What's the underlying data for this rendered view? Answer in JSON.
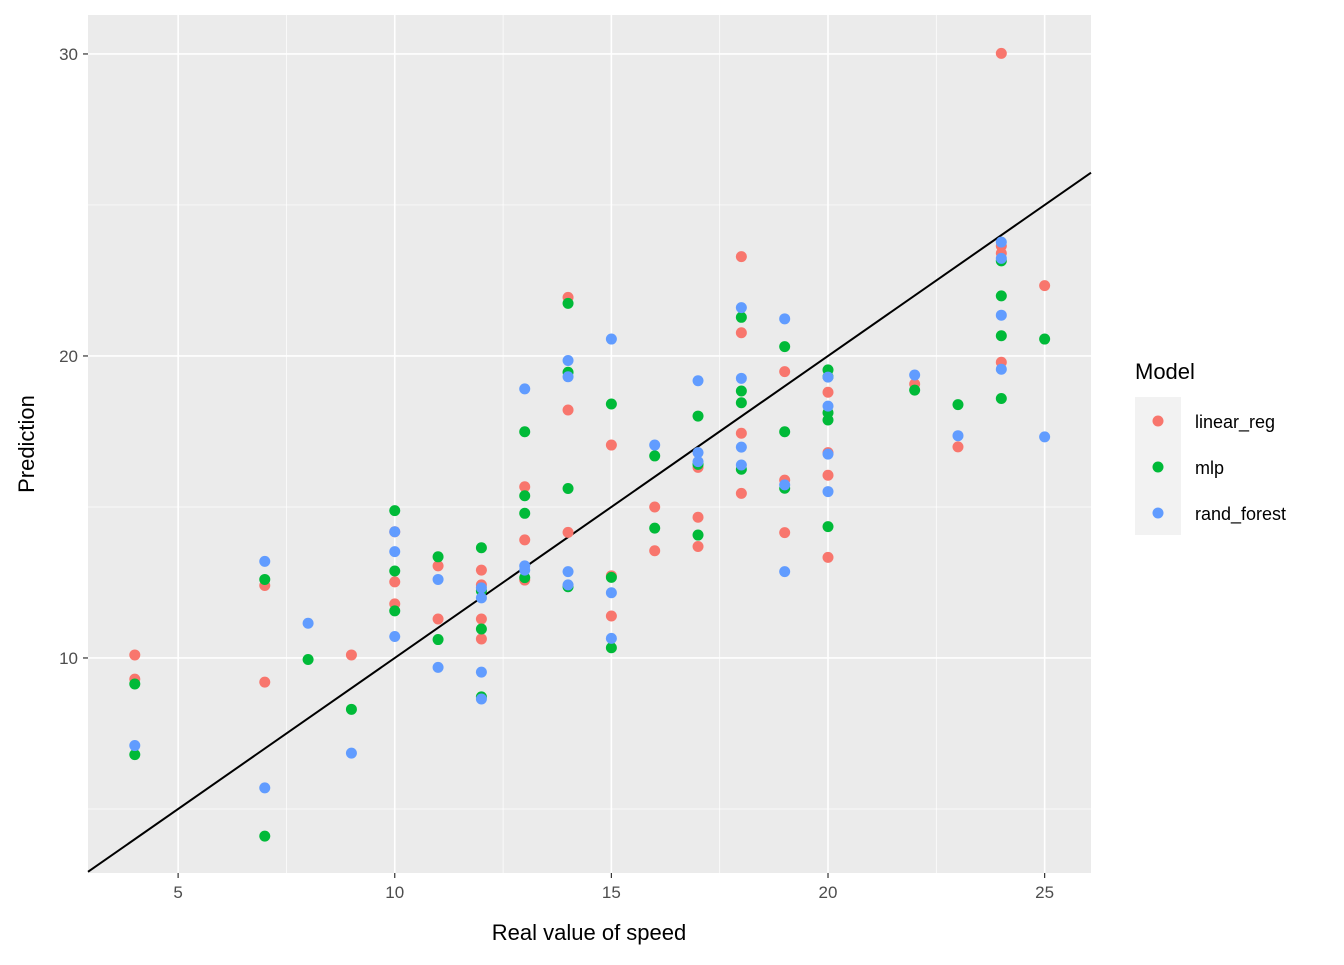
{
  "chart_data": {
    "type": "scatter",
    "title": "",
    "xlabel": "Real value of speed",
    "ylabel": "Prediction",
    "xlim": [
      2.92,
      26.07
    ],
    "ylim": [
      2.88,
      31.29
    ],
    "xticks": [
      5,
      10,
      15,
      20,
      25
    ],
    "yticks": [
      10,
      20,
      30
    ],
    "grid": true,
    "reference_line": {
      "type": "identity",
      "slope": 1,
      "intercept": 0,
      "color": "#000000"
    },
    "legend": {
      "title": "Model",
      "position": "right"
    },
    "series": [
      {
        "name": "linear_reg",
        "color": "#F8766D",
        "points": [
          [
            4,
            10.1
          ],
          [
            4,
            9.3
          ],
          [
            7,
            12.4
          ],
          [
            7,
            9.2
          ],
          [
            9,
            10.1
          ],
          [
            10,
            14.18
          ],
          [
            10,
            12.52
          ],
          [
            10,
            11.79
          ],
          [
            11,
            13.05
          ],
          [
            11,
            11.29
          ],
          [
            12,
            12.91
          ],
          [
            12,
            12.42
          ],
          [
            12,
            11.29
          ],
          [
            12,
            10.63
          ],
          [
            13,
            15.67
          ],
          [
            13,
            13.91
          ],
          [
            13,
            12.58
          ],
          [
            14,
            21.94
          ],
          [
            14,
            18.21
          ],
          [
            14,
            14.16
          ],
          [
            15,
            17.05
          ],
          [
            15,
            12.72
          ],
          [
            15,
            11.39
          ],
          [
            16,
            15.0
          ],
          [
            16,
            13.55
          ],
          [
            17,
            16.31
          ],
          [
            17,
            14.66
          ],
          [
            17,
            13.69
          ],
          [
            18,
            23.29
          ],
          [
            18,
            20.77
          ],
          [
            18,
            17.44
          ],
          [
            18,
            15.45
          ],
          [
            19,
            19.48
          ],
          [
            19,
            15.89
          ],
          [
            19,
            14.15
          ],
          [
            20,
            18.8
          ],
          [
            20,
            16.8
          ],
          [
            20,
            16.05
          ],
          [
            20,
            13.33
          ],
          [
            22,
            19.07
          ],
          [
            23,
            16.99
          ],
          [
            24,
            30.02
          ],
          [
            24,
            23.64
          ],
          [
            24,
            23.4
          ],
          [
            24,
            19.79
          ],
          [
            25,
            22.33
          ]
        ]
      },
      {
        "name": "mlp",
        "color": "#00BA38",
        "points": [
          [
            4,
            9.14
          ],
          [
            4,
            6.8
          ],
          [
            7,
            12.6
          ],
          [
            7,
            4.1
          ],
          [
            8,
            9.95
          ],
          [
            9,
            8.3
          ],
          [
            10,
            14.88
          ],
          [
            10,
            12.88
          ],
          [
            10,
            11.56
          ],
          [
            11,
            13.35
          ],
          [
            11,
            10.61
          ],
          [
            12,
            13.65
          ],
          [
            12,
            12.22
          ],
          [
            12,
            10.96
          ],
          [
            12,
            8.71
          ],
          [
            13,
            17.49
          ],
          [
            13,
            15.37
          ],
          [
            13,
            14.79
          ],
          [
            13,
            12.66
          ],
          [
            14,
            21.74
          ],
          [
            14,
            19.46
          ],
          [
            14,
            15.61
          ],
          [
            14,
            12.36
          ],
          [
            15,
            18.41
          ],
          [
            15,
            12.67
          ],
          [
            15,
            10.34
          ],
          [
            16,
            16.69
          ],
          [
            16,
            14.3
          ],
          [
            17,
            18.01
          ],
          [
            17,
            16.41
          ],
          [
            17,
            14.07
          ],
          [
            18,
            21.28
          ],
          [
            18,
            18.84
          ],
          [
            18,
            18.45
          ],
          [
            18,
            16.25
          ],
          [
            19,
            20.31
          ],
          [
            19,
            17.49
          ],
          [
            19,
            15.62
          ],
          [
            20,
            19.54
          ],
          [
            20,
            19.31
          ],
          [
            20,
            18.12
          ],
          [
            20,
            17.88
          ],
          [
            20,
            14.35
          ],
          [
            22,
            18.87
          ],
          [
            23,
            18.39
          ],
          [
            24,
            23.15
          ],
          [
            24,
            21.99
          ],
          [
            24,
            20.67
          ],
          [
            24,
            18.59
          ],
          [
            25,
            20.56
          ]
        ]
      },
      {
        "name": "rand_forest",
        "color": "#619CFF",
        "points": [
          [
            4,
            7.1
          ],
          [
            7,
            13.2
          ],
          [
            7,
            5.7
          ],
          [
            8,
            11.15
          ],
          [
            9,
            6.85
          ],
          [
            10,
            14.18
          ],
          [
            10,
            13.52
          ],
          [
            10,
            10.71
          ],
          [
            11,
            12.6
          ],
          [
            11,
            9.69
          ],
          [
            12,
            12.32
          ],
          [
            12,
            11.99
          ],
          [
            12,
            9.53
          ],
          [
            12,
            8.64
          ],
          [
            13,
            18.91
          ],
          [
            13,
            13.05
          ],
          [
            13,
            12.91
          ],
          [
            14,
            19.85
          ],
          [
            14,
            19.31
          ],
          [
            14,
            12.86
          ],
          [
            14,
            12.42
          ],
          [
            15,
            20.56
          ],
          [
            15,
            12.16
          ],
          [
            15,
            10.65
          ],
          [
            16,
            17.05
          ],
          [
            17,
            19.18
          ],
          [
            17,
            16.8
          ],
          [
            17,
            16.5
          ],
          [
            18,
            21.6
          ],
          [
            18,
            19.26
          ],
          [
            18,
            16.98
          ],
          [
            18,
            16.39
          ],
          [
            19,
            21.23
          ],
          [
            19,
            15.73
          ],
          [
            19,
            12.86
          ],
          [
            20,
            19.3
          ],
          [
            20,
            18.34
          ],
          [
            20,
            16.75
          ],
          [
            20,
            15.51
          ],
          [
            22,
            19.37
          ],
          [
            23,
            17.36
          ],
          [
            24,
            23.77
          ],
          [
            24,
            23.23
          ],
          [
            24,
            21.35
          ],
          [
            24,
            19.56
          ],
          [
            25,
            17.32
          ]
        ]
      }
    ]
  }
}
